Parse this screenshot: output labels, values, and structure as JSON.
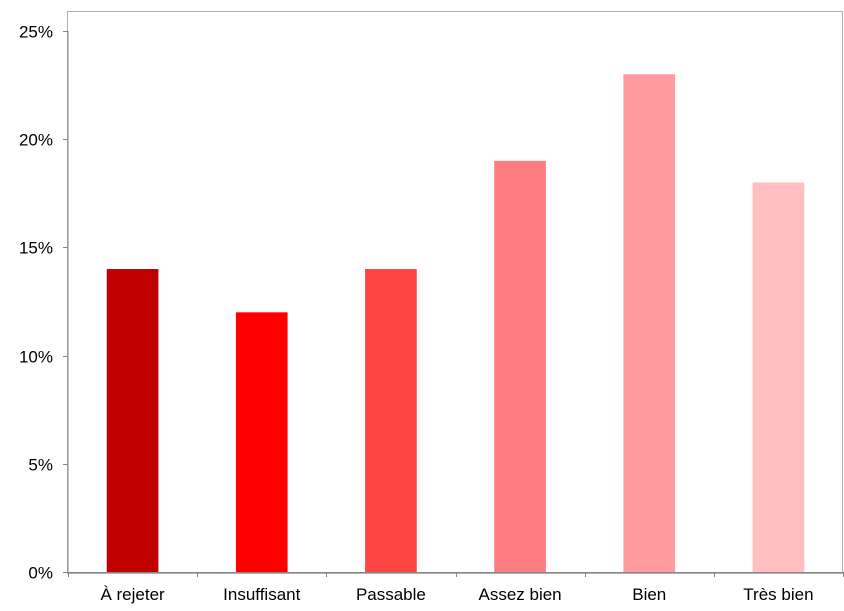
{
  "chart_data": {
    "type": "bar",
    "categories": [
      "À rejeter",
      "Insuffisant",
      "Passable",
      "Assez bien",
      "Bien",
      "Très bien"
    ],
    "values": [
      14,
      12,
      14,
      19,
      23,
      18
    ],
    "unit": "%",
    "ylim": [
      0,
      25
    ],
    "yticks": [
      "0%",
      "5%",
      "10%",
      "15%",
      "20%",
      "25%"
    ],
    "title": "",
    "xlabel": "",
    "ylabel": "",
    "grid": false,
    "legend": "none",
    "colors": [
      "#C00000",
      "#FF0000",
      "#FF4444",
      "#FF7C80",
      "#FF9B9F",
      "#FFBFC1"
    ]
  }
}
